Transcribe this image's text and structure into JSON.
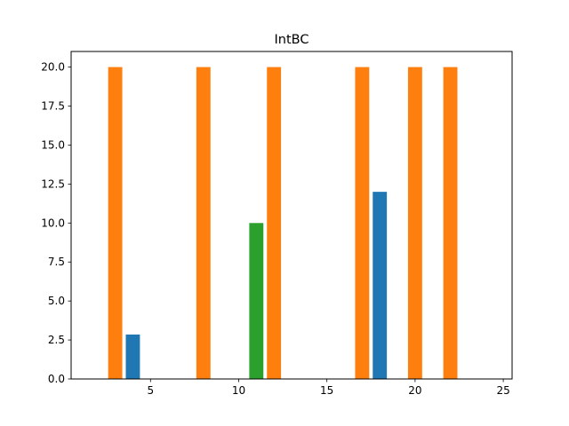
{
  "chart_data": {
    "type": "bar",
    "title": "IntBC",
    "xlabel": "",
    "ylabel": "",
    "xlim": [
      0.5,
      25.5
    ],
    "ylim": [
      0,
      21
    ],
    "xticks": [
      5,
      10,
      15,
      20,
      25
    ],
    "yticks": [
      0.0,
      2.5,
      5.0,
      7.5,
      10.0,
      12.5,
      15.0,
      17.5,
      20.0
    ],
    "ytick_labels": [
      "0.0",
      "2.5",
      "5.0",
      "7.5",
      "10.0",
      "12.5",
      "15.0",
      "17.5",
      "20.0"
    ],
    "grid": false,
    "bars": [
      {
        "x": 3,
        "value": 20,
        "color": "#ff7f0e"
      },
      {
        "x": 4,
        "value": 2.85,
        "color": "#1f77b4"
      },
      {
        "x": 8,
        "value": 20,
        "color": "#ff7f0e"
      },
      {
        "x": 11,
        "value": 10,
        "color": "#2ca02c"
      },
      {
        "x": 12,
        "value": 20,
        "color": "#ff7f0e"
      },
      {
        "x": 17,
        "value": 20,
        "color": "#ff7f0e"
      },
      {
        "x": 18,
        "value": 12,
        "color": "#1f77b4"
      },
      {
        "x": 20,
        "value": 20,
        "color": "#ff7f0e"
      },
      {
        "x": 22,
        "value": 20,
        "color": "#ff7f0e"
      }
    ]
  }
}
